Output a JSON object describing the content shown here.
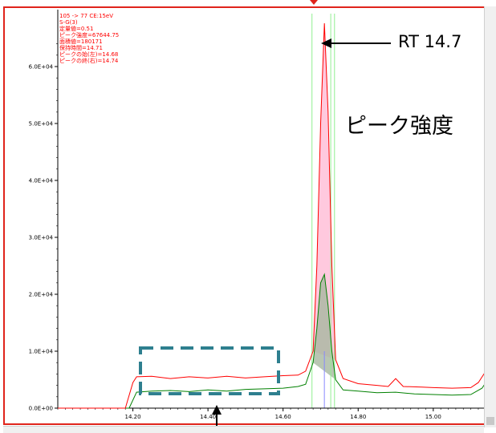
{
  "info_box": {
    "lines": [
      "105 -> 77 CE:15eV",
      "S-G(3)",
      "定量値=0.51",
      "ピーク強度=67644.75",
      "面積値=180171",
      "保持時間=14.71",
      "ピークの始(左)=14.68",
      "ピークの終(右)=14.74"
    ]
  },
  "annotations": {
    "rt_label": "RT 14.7",
    "intensity_label": "ピーク強度"
  },
  "colors": {
    "frame": "#e0241b",
    "red_trace": "#ff0000",
    "green_trace": "#008000",
    "peak_fill": "#ffc0d8",
    "green_fill": "#a8b8a0",
    "integration_line": "#90ee90",
    "rt_line": "#8888ff",
    "dashed_box": "#2e7f8f"
  },
  "chart_data": {
    "type": "line",
    "xlim": [
      14.0,
      15.15
    ],
    "ylim": [
      0,
      70000
    ],
    "x_ticks": [
      "14.20",
      "14.40",
      "14.60",
      "14.80",
      "15.00"
    ],
    "x_tick_values": [
      14.2,
      14.4,
      14.6,
      14.8,
      15.0
    ],
    "y_ticks": [
      "0.0E+00",
      "1.0E+04",
      "2.0E+04",
      "3.0E+04",
      "4.0E+04",
      "5.0E+04",
      "6.0E+04"
    ],
    "y_tick_values": [
      0,
      10000,
      20000,
      30000,
      40000,
      50000,
      60000
    ],
    "integration_bounds": [
      14.68,
      14.74
    ],
    "retention_time": 14.71,
    "series": [
      {
        "color": "#ff0000",
        "points": [
          [
            14.0,
            0
          ],
          [
            14.18,
            0
          ],
          [
            14.2,
            4500
          ],
          [
            14.21,
            5500
          ],
          [
            14.25,
            5600
          ],
          [
            14.3,
            5200
          ],
          [
            14.35,
            5500
          ],
          [
            14.4,
            5300
          ],
          [
            14.45,
            5600
          ],
          [
            14.5,
            5300
          ],
          [
            14.55,
            5500
          ],
          [
            14.6,
            5700
          ],
          [
            14.64,
            5800
          ],
          [
            14.66,
            6500
          ],
          [
            14.68,
            10000
          ],
          [
            14.69,
            25000
          ],
          [
            14.7,
            50000
          ],
          [
            14.71,
            67600
          ],
          [
            14.72,
            52000
          ],
          [
            14.73,
            25000
          ],
          [
            14.74,
            8500
          ],
          [
            14.76,
            5200
          ],
          [
            14.8,
            4300
          ],
          [
            14.85,
            4000
          ],
          [
            14.88,
            3800
          ],
          [
            14.9,
            5200
          ],
          [
            14.92,
            3800
          ],
          [
            14.97,
            3700
          ],
          [
            15.0,
            3600
          ],
          [
            15.05,
            3500
          ],
          [
            15.1,
            3600
          ],
          [
            15.12,
            4500
          ],
          [
            15.14,
            6500
          ],
          [
            15.15,
            7000
          ]
        ]
      },
      {
        "color": "#008000",
        "points": [
          [
            14.0,
            0
          ],
          [
            14.19,
            0
          ],
          [
            14.21,
            2800
          ],
          [
            14.25,
            3000
          ],
          [
            14.3,
            3100
          ],
          [
            14.35,
            2900
          ],
          [
            14.4,
            3200
          ],
          [
            14.45,
            3000
          ],
          [
            14.5,
            3300
          ],
          [
            14.55,
            3400
          ],
          [
            14.6,
            3500
          ],
          [
            14.64,
            3800
          ],
          [
            14.66,
            4200
          ],
          [
            14.68,
            8000
          ],
          [
            14.69,
            14000
          ],
          [
            14.7,
            22000
          ],
          [
            14.71,
            23500
          ],
          [
            14.72,
            18000
          ],
          [
            14.73,
            10000
          ],
          [
            14.74,
            5000
          ],
          [
            14.76,
            3200
          ],
          [
            14.8,
            3000
          ],
          [
            14.85,
            2700
          ],
          [
            14.9,
            2800
          ],
          [
            14.95,
            2500
          ],
          [
            15.0,
            2400
          ],
          [
            15.05,
            2300
          ],
          [
            15.1,
            2400
          ],
          [
            15.13,
            3500
          ],
          [
            15.15,
            5500
          ]
        ]
      }
    ]
  }
}
